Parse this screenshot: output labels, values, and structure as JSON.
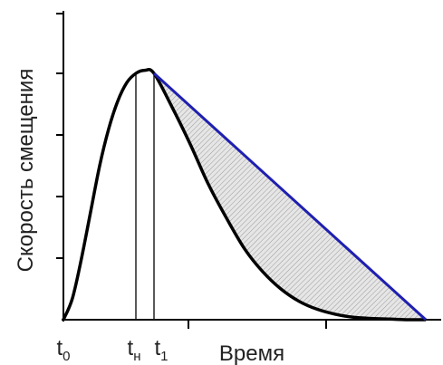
{
  "chart_data": {
    "type": "line",
    "title": "",
    "xlabel": "Время",
    "ylabel": "Скорость смещения",
    "xlim": [
      0,
      10
    ],
    "ylim": [
      0,
      4
    ],
    "grid": false,
    "legend": "none",
    "x_markers": [
      {
        "label": "t",
        "sub": "0",
        "x": 0.0
      },
      {
        "label": "t",
        "sub": "н",
        "x": 2.0
      },
      {
        "label": "t",
        "sub": "1",
        "x": 2.5
      }
    ],
    "peak": {
      "x": 2.25,
      "y": 4.05
    },
    "series": [
      {
        "role": "velocity-curve",
        "color": "#000000",
        "x": [
          0.0,
          0.25,
          0.5,
          0.75,
          1.0,
          1.25,
          1.5,
          1.75,
          2.0,
          2.25,
          2.5,
          3.0,
          3.5,
          4.0,
          4.5,
          5.0,
          5.5,
          6.0,
          6.5,
          7.0,
          7.5,
          8.0,
          8.5,
          9.0,
          9.5,
          10.0
        ],
        "y": [
          0.0,
          0.35,
          1.0,
          1.75,
          2.5,
          3.1,
          3.55,
          3.85,
          4.0,
          4.05,
          4.0,
          3.45,
          2.85,
          2.2,
          1.65,
          1.15,
          0.78,
          0.5,
          0.3,
          0.17,
          0.09,
          0.04,
          0.02,
          0.01,
          0.0,
          0.0
        ]
      },
      {
        "role": "linear-approximation",
        "color": "#1f1fb0",
        "x": [
          2.5,
          10.0
        ],
        "y": [
          4.0,
          0.0
        ]
      }
    ],
    "shaded_region": {
      "between": [
        "linear-approximation",
        "velocity-curve"
      ],
      "fill": "hatched-gray"
    }
  }
}
